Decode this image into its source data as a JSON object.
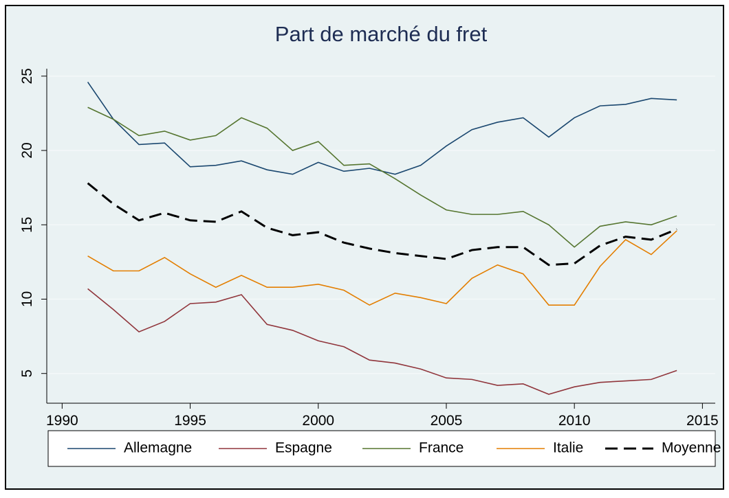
{
  "chart_data": {
    "type": "line",
    "title": "Part de marché du fret",
    "x": [
      1991,
      1992,
      1993,
      1994,
      1995,
      1996,
      1997,
      1998,
      1999,
      2000,
      2001,
      2002,
      2003,
      2004,
      2005,
      2006,
      2007,
      2008,
      2009,
      2010,
      2011,
      2012,
      2013,
      2014
    ],
    "series": [
      {
        "name": "Allemagne",
        "color": "#1a476f",
        "values": [
          24.6,
          22.1,
          20.4,
          20.5,
          18.9,
          19.0,
          19.3,
          18.7,
          18.4,
          19.2,
          18.6,
          18.8,
          18.4,
          19.0,
          20.3,
          21.4,
          21.9,
          22.2,
          20.9,
          22.2,
          23.0,
          23.1,
          23.5,
          23.4
        ]
      },
      {
        "name": "Espagne",
        "color": "#90353b",
        "values": [
          10.7,
          9.3,
          7.8,
          8.5,
          9.7,
          9.8,
          10.3,
          8.3,
          7.9,
          7.2,
          6.8,
          5.9,
          5.7,
          5.3,
          4.7,
          4.6,
          4.2,
          4.3,
          3.6,
          4.1,
          4.4,
          4.5,
          4.6,
          5.2
        ]
      },
      {
        "name": "France",
        "color": "#55752f",
        "values": [
          22.9,
          22.1,
          21.0,
          21.3,
          20.7,
          21.0,
          22.2,
          21.5,
          20.0,
          20.6,
          19.0,
          19.1,
          18.1,
          17.0,
          16.0,
          15.7,
          15.7,
          15.9,
          15.0,
          13.5,
          14.9,
          15.2,
          15.0,
          15.6
        ]
      },
      {
        "name": "Italie",
        "color": "#e37e00",
        "values": [
          12.9,
          11.9,
          11.9,
          12.8,
          11.7,
          10.8,
          11.6,
          10.8,
          10.8,
          11.0,
          10.6,
          9.6,
          10.4,
          10.1,
          9.7,
          11.4,
          12.3,
          11.7,
          9.6,
          9.6,
          12.2,
          14.0,
          13.0,
          14.6
        ]
      },
      {
        "name": "Moyenne",
        "color": "#000000",
        "style": "dashed",
        "values": [
          17.8,
          16.4,
          15.3,
          15.8,
          15.3,
          15.2,
          15.9,
          14.8,
          14.3,
          14.5,
          13.8,
          13.4,
          13.1,
          12.9,
          12.7,
          13.3,
          13.5,
          13.5,
          12.3,
          12.4,
          13.6,
          14.2,
          14.0,
          14.7
        ]
      }
    ],
    "xlim": [
      1989.4,
      2015.5
    ],
    "xticks": [
      1990,
      1995,
      2000,
      2005,
      2010,
      2015
    ],
    "ylim": [
      3,
      25.5
    ],
    "yticks": [
      5,
      10,
      15,
      20,
      25
    ],
    "grid": true,
    "legend": "bottom"
  }
}
